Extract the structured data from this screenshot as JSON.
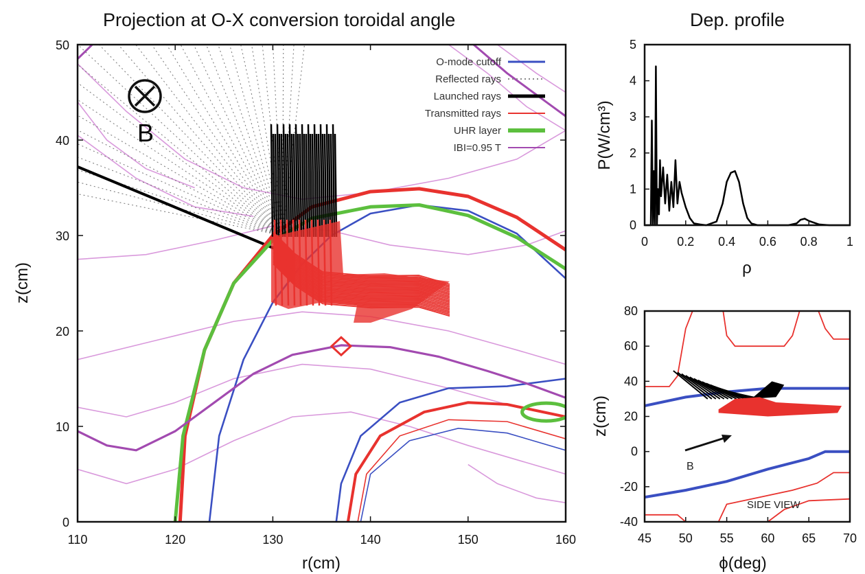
{
  "chart_data": [
    {
      "type": "line",
      "title": "Projection at O-X conversion toroidal angle",
      "xlabel": "r(cm)",
      "ylabel": "z(cm)",
      "xlim": [
        110,
        160
      ],
      "ylim": [
        0,
        50
      ],
      "xticks": [
        "110",
        "120",
        "130",
        "140",
        "150",
        "160"
      ],
      "yticks": [
        "0",
        "10",
        "20",
        "30",
        "40",
        "50"
      ],
      "legend_position": "top-right",
      "annotation": "B",
      "series": [
        {
          "name": "O-mode cutoff",
          "color": "#3a4fc2",
          "x": [
            123.5,
            124.5,
            127,
            130,
            133,
            136,
            140,
            145,
            150,
            155,
            160
          ],
          "y": [
            0,
            9,
            17,
            23,
            27,
            30,
            32.3,
            33.2,
            32.6,
            30.2,
            25.5
          ]
        },
        {
          "name": "Reflected rays",
          "color": "#888888"
        },
        {
          "name": "Launched rays",
          "color": "#000000",
          "x": [
            110,
            130.5
          ],
          "y": [
            37.2,
            28.5
          ]
        },
        {
          "name": "Transmitted rays",
          "color": "#e8322e",
          "x": [
            120.5,
            121,
            123,
            126,
            130,
            134,
            140,
            145,
            150,
            155,
            160
          ],
          "y": [
            0,
            9,
            18,
            25,
            30,
            33,
            34.6,
            34.9,
            34.1,
            31.9,
            28.5
          ]
        },
        {
          "name": "UHR layer",
          "color": "#5cbf3e",
          "x": [
            120,
            120.8,
            123,
            126,
            130,
            134,
            140,
            145,
            150,
            155,
            160
          ],
          "y": [
            0,
            9,
            18,
            25,
            29.5,
            31.8,
            33,
            33.2,
            32.1,
            29.8,
            26.5
          ]
        },
        {
          "name": "IBI=0.95 T",
          "color": "#a24ab0",
          "x": [
            110,
            113,
            116,
            120,
            124,
            128,
            132,
            137,
            142,
            147,
            152,
            156,
            160
          ],
          "y": [
            9.5,
            8,
            7.5,
            9.5,
            12.5,
            15.5,
            17.5,
            18.5,
            18.3,
            17.3,
            15.8,
            14.5,
            13
          ]
        }
      ]
    },
    {
      "type": "line",
      "title": "Dep. profile",
      "xlabel": "ρ",
      "ylabel": "P(W/cm³)",
      "xlim": [
        0,
        1
      ],
      "ylim": [
        0,
        5
      ],
      "xticks": [
        "0",
        "0.2",
        "0.4",
        "0.6",
        "0.8",
        "1"
      ],
      "yticks": [
        "0",
        "1",
        "2",
        "3",
        "4",
        "5"
      ],
      "series": [
        {
          "color": "#000000",
          "x": [
            0,
            0.03,
            0.035,
            0.04,
            0.045,
            0.05,
            0.055,
            0.06,
            0.065,
            0.07,
            0.075,
            0.08,
            0.09,
            0.1,
            0.11,
            0.12,
            0.13,
            0.14,
            0.15,
            0.16,
            0.17,
            0.18,
            0.2,
            0.22,
            0.24,
            0.27,
            0.3,
            0.35,
            0.38,
            0.4,
            0.42,
            0.44,
            0.46,
            0.48,
            0.5,
            0.52,
            0.55,
            0.6,
            0.65,
            0.7,
            0.74,
            0.76,
            0.78,
            0.8,
            0.85,
            0.9,
            1.0
          ],
          "y": [
            0,
            0,
            2.9,
            0,
            1.5,
            0,
            4.4,
            0,
            1.0,
            0.3,
            1.8,
            0.8,
            1.6,
            0.6,
            1.4,
            0.4,
            1.2,
            0.5,
            1.8,
            0.6,
            1.2,
            0.9,
            0.5,
            0.2,
            0.05,
            0.02,
            0,
            0.1,
            0.6,
            1.2,
            1.45,
            1.5,
            1.2,
            0.6,
            0.2,
            0.05,
            0,
            0,
            0,
            0,
            0.05,
            0.15,
            0.18,
            0.12,
            0.02,
            0,
            0
          ]
        }
      ]
    },
    {
      "type": "line",
      "title": "",
      "xlabel": "ϕ(deg)",
      "ylabel": "z(cm)",
      "xlim": [
        45,
        70
      ],
      "ylim": [
        -40,
        80
      ],
      "xticks": [
        "45",
        "50",
        "55",
        "60",
        "65",
        "70"
      ],
      "yticks": [
        "-40",
        "-20",
        "0",
        "20",
        "40",
        "60",
        "80"
      ],
      "annotation": "SIDE VIEW",
      "arrow_label": "B",
      "series": [
        {
          "color": "#3a4fc2",
          "x": [
            45,
            50,
            55,
            60,
            65,
            70
          ],
          "y": [
            26,
            31,
            34,
            36,
            36,
            36
          ]
        },
        {
          "color": "#3a4fc2",
          "x": [
            45,
            50,
            55,
            60,
            65,
            67,
            70
          ],
          "y": [
            -26,
            -22,
            -17,
            -10,
            -4,
            0,
            0
          ]
        }
      ]
    }
  ]
}
